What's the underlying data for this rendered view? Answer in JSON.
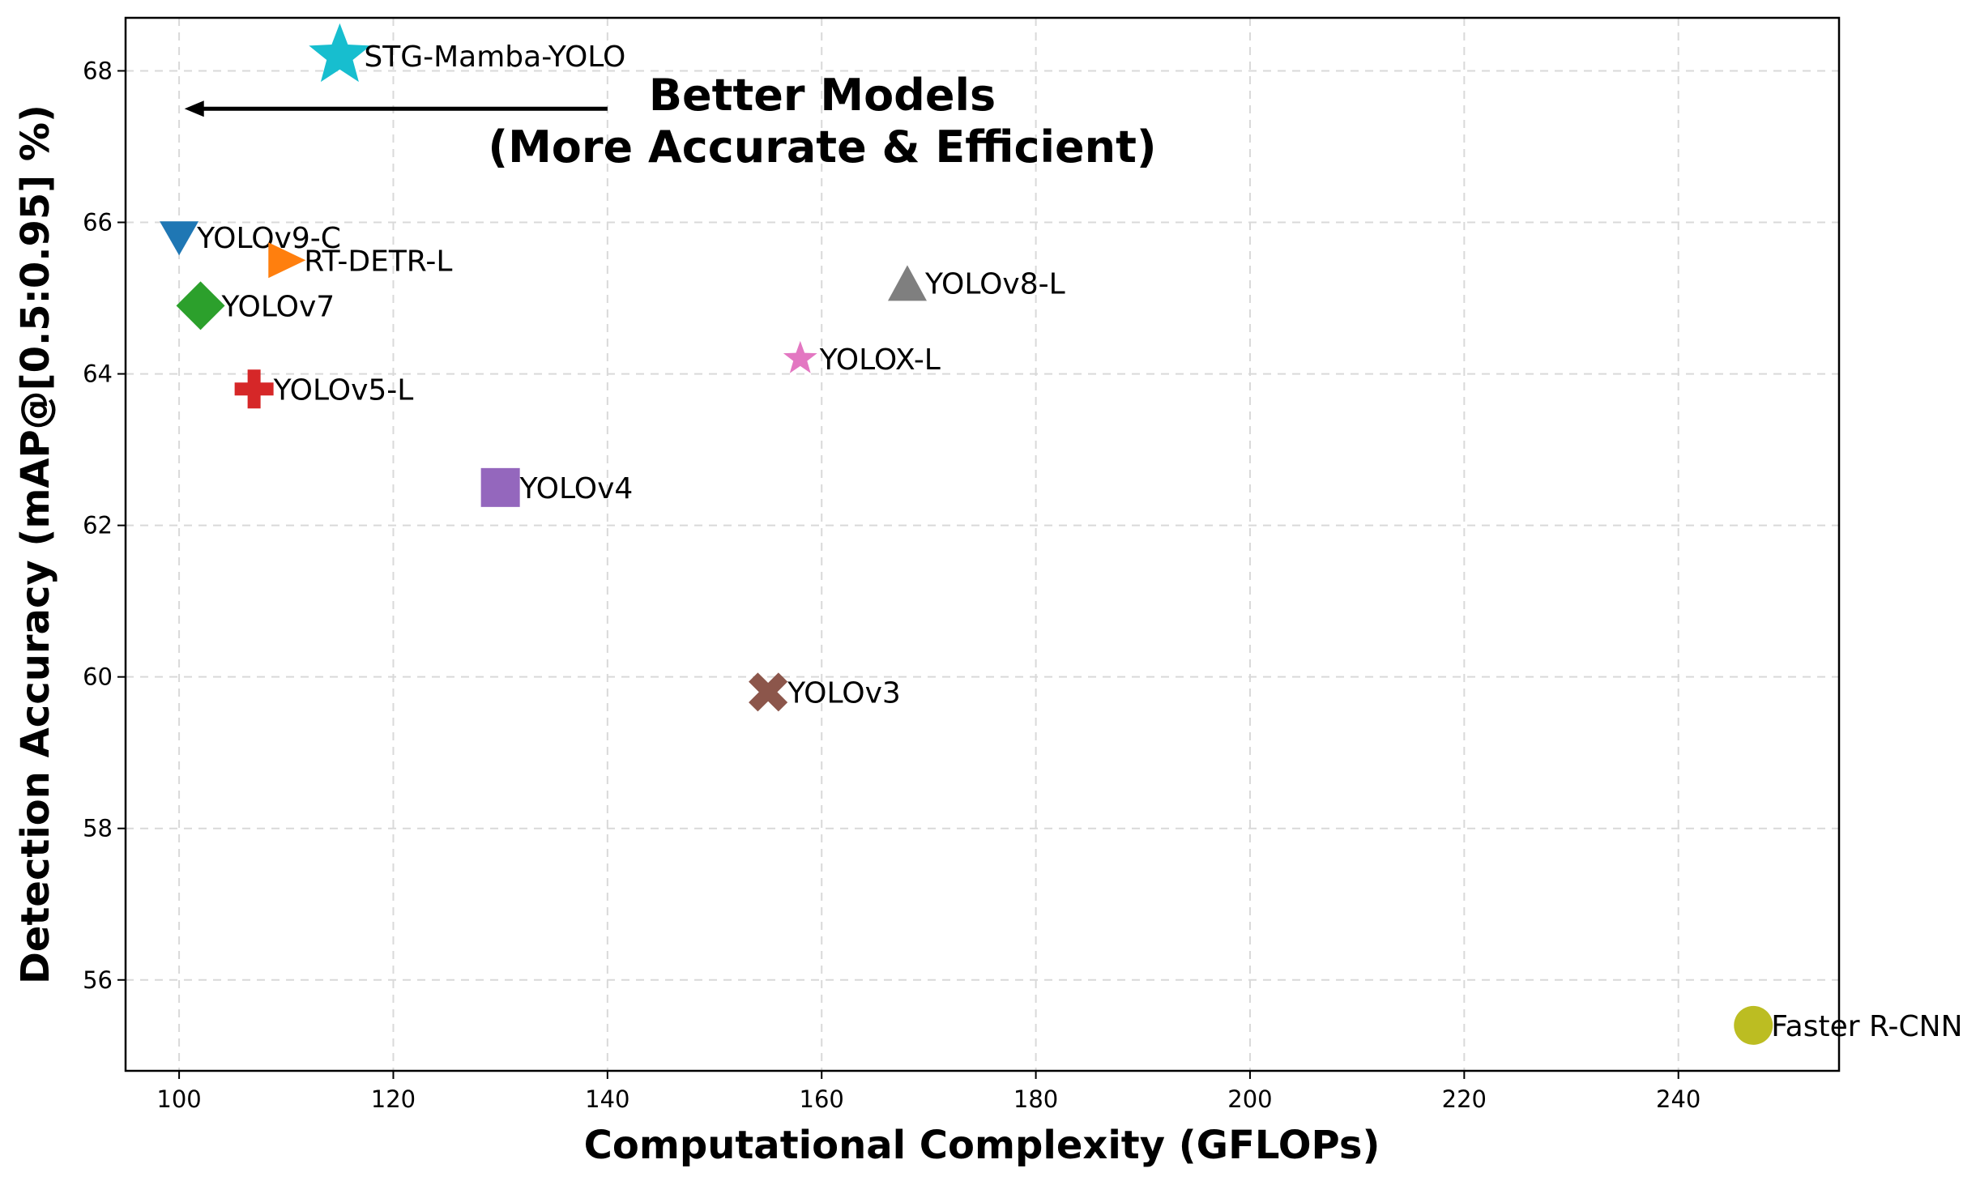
{
  "chart_data": {
    "type": "scatter",
    "xlabel": "Computational Complexity (GFLOPs)",
    "ylabel": "Detection Accuracy (mAP@[0.5:0.95] %)",
    "xlim": [
      95,
      255
    ],
    "ylim": [
      54.8,
      68.7
    ],
    "xticks": [
      100,
      120,
      140,
      160,
      180,
      200,
      220,
      240
    ],
    "yticks": [
      56,
      58,
      60,
      62,
      64,
      66,
      68
    ],
    "grid": true,
    "annotation": {
      "line1": "Better Models",
      "line2": "(More Accurate & Efficient)",
      "arrow_from": [
        140,
        67.5
      ],
      "arrow_to": [
        100.5,
        67.5
      ]
    },
    "points": [
      {
        "name": "STG-Mamba-YOLO",
        "x": 115,
        "y": 68.2,
        "color": "#17becf",
        "marker": "star-big"
      },
      {
        "name": "YOLOv9-C",
        "x": 100,
        "y": 65.8,
        "color": "#1f77b4",
        "marker": "triangle-down"
      },
      {
        "name": "RT-DETR-L",
        "x": 110,
        "y": 65.5,
        "color": "#ff7f0e",
        "marker": "triangle-right"
      },
      {
        "name": "YOLOv7",
        "x": 102,
        "y": 64.9,
        "color": "#2ca02c",
        "marker": "diamond"
      },
      {
        "name": "YOLOv5-L",
        "x": 107,
        "y": 63.8,
        "color": "#d62728",
        "marker": "plus"
      },
      {
        "name": "YOLOv4",
        "x": 130,
        "y": 62.5,
        "color": "#9467bd",
        "marker": "square"
      },
      {
        "name": "YOLOv3",
        "x": 155,
        "y": 59.8,
        "color": "#8c564b",
        "marker": "x"
      },
      {
        "name": "YOLOX-L",
        "x": 158,
        "y": 64.2,
        "color": "#e377c2",
        "marker": "star-small"
      },
      {
        "name": "YOLOv8-L",
        "x": 168,
        "y": 65.2,
        "color": "#7f7f7f",
        "marker": "triangle-up"
      },
      {
        "name": "Faster R-CNN",
        "x": 247,
        "y": 55.4,
        "color": "#bcbd22",
        "marker": "circle"
      }
    ]
  }
}
